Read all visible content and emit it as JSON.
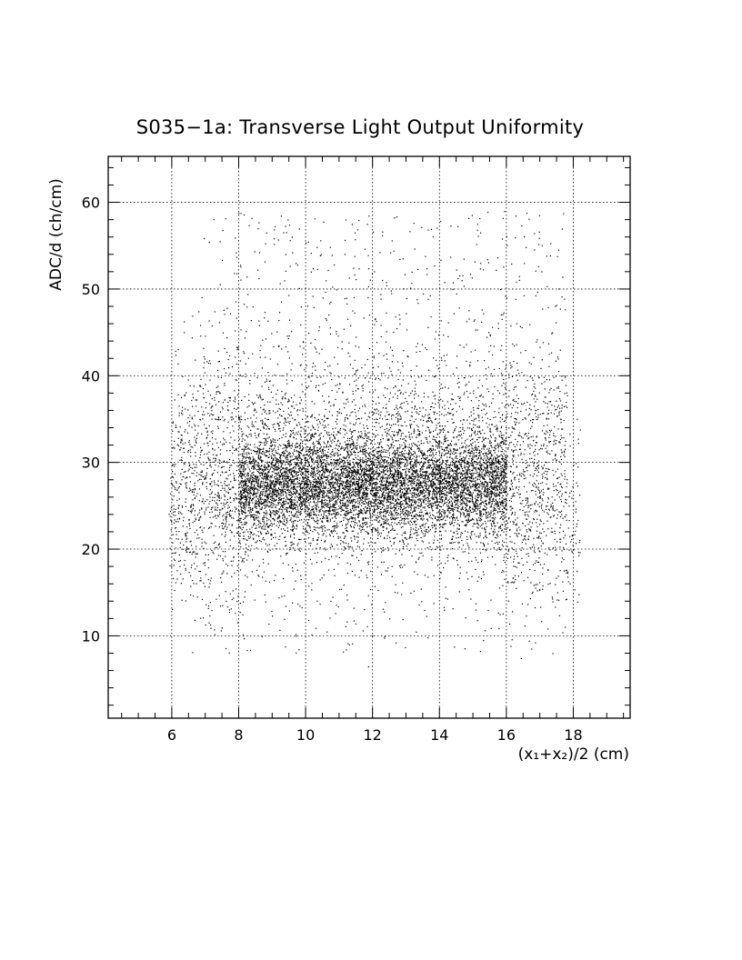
{
  "chart_data": {
    "type": "scatter",
    "title": "S035−1a: Transverse Light Output Uniformity",
    "xlabel": "(x₁+x₂)/2 (cm)",
    "ylabel": "ADC/d (ch/cm)",
    "xlim": [
      4.1,
      19.7
    ],
    "ylim": [
      0.5,
      65.3
    ],
    "x_major_ticks": [
      6,
      8,
      10,
      12,
      14,
      16,
      18
    ],
    "y_major_ticks": [
      10,
      20,
      30,
      40,
      50,
      60
    ],
    "x_tick_labels": [
      "6",
      "8",
      "10",
      "12",
      "14",
      "16",
      "18"
    ],
    "y_tick_labels": [
      "10",
      "20",
      "30",
      "40",
      "50",
      "60"
    ],
    "grid": true,
    "grid_style": "dotted",
    "marker_color": "#000000",
    "distribution": {
      "x_range": [
        5.8,
        18.3
      ],
      "dense_x_range": [
        8.0,
        16.0
      ],
      "y_center": 27.5,
      "y_core_spread": 3.0,
      "y_range": [
        4,
        59
      ]
    },
    "series": [
      {
        "values_sample": [
          [
            6.2,
            22.1
          ],
          [
            6.8,
            17.5
          ],
          [
            7.1,
            25.3
          ],
          [
            7.5,
            28.9
          ],
          [
            8.1,
            26.4
          ],
          [
            8.6,
            29.2
          ],
          [
            9.0,
            27.8
          ],
          [
            9.4,
            31.5
          ],
          [
            9.9,
            26.7
          ],
          [
            10.3,
            28.1
          ],
          [
            10.8,
            24.9
          ],
          [
            11.2,
            29.6
          ],
          [
            11.7,
            27.3
          ],
          [
            12.1,
            26.2
          ],
          [
            12.6,
            30.4
          ],
          [
            13.0,
            27.1
          ],
          [
            13.5,
            25.6
          ],
          [
            13.9,
            28.8
          ],
          [
            14.3,
            26.5
          ],
          [
            14.8,
            29.9
          ],
          [
            15.2,
            27.4
          ],
          [
            15.7,
            25.2
          ],
          [
            16.2,
            30.7
          ],
          [
            16.8,
            21.3
          ],
          [
            17.3,
            33.6
          ],
          [
            9.5,
            42.1
          ],
          [
            12.4,
            47.3
          ],
          [
            15.1,
            55.2
          ],
          [
            11.0,
            15.4
          ],
          [
            13.6,
            12.3
          ]
        ]
      }
    ]
  }
}
